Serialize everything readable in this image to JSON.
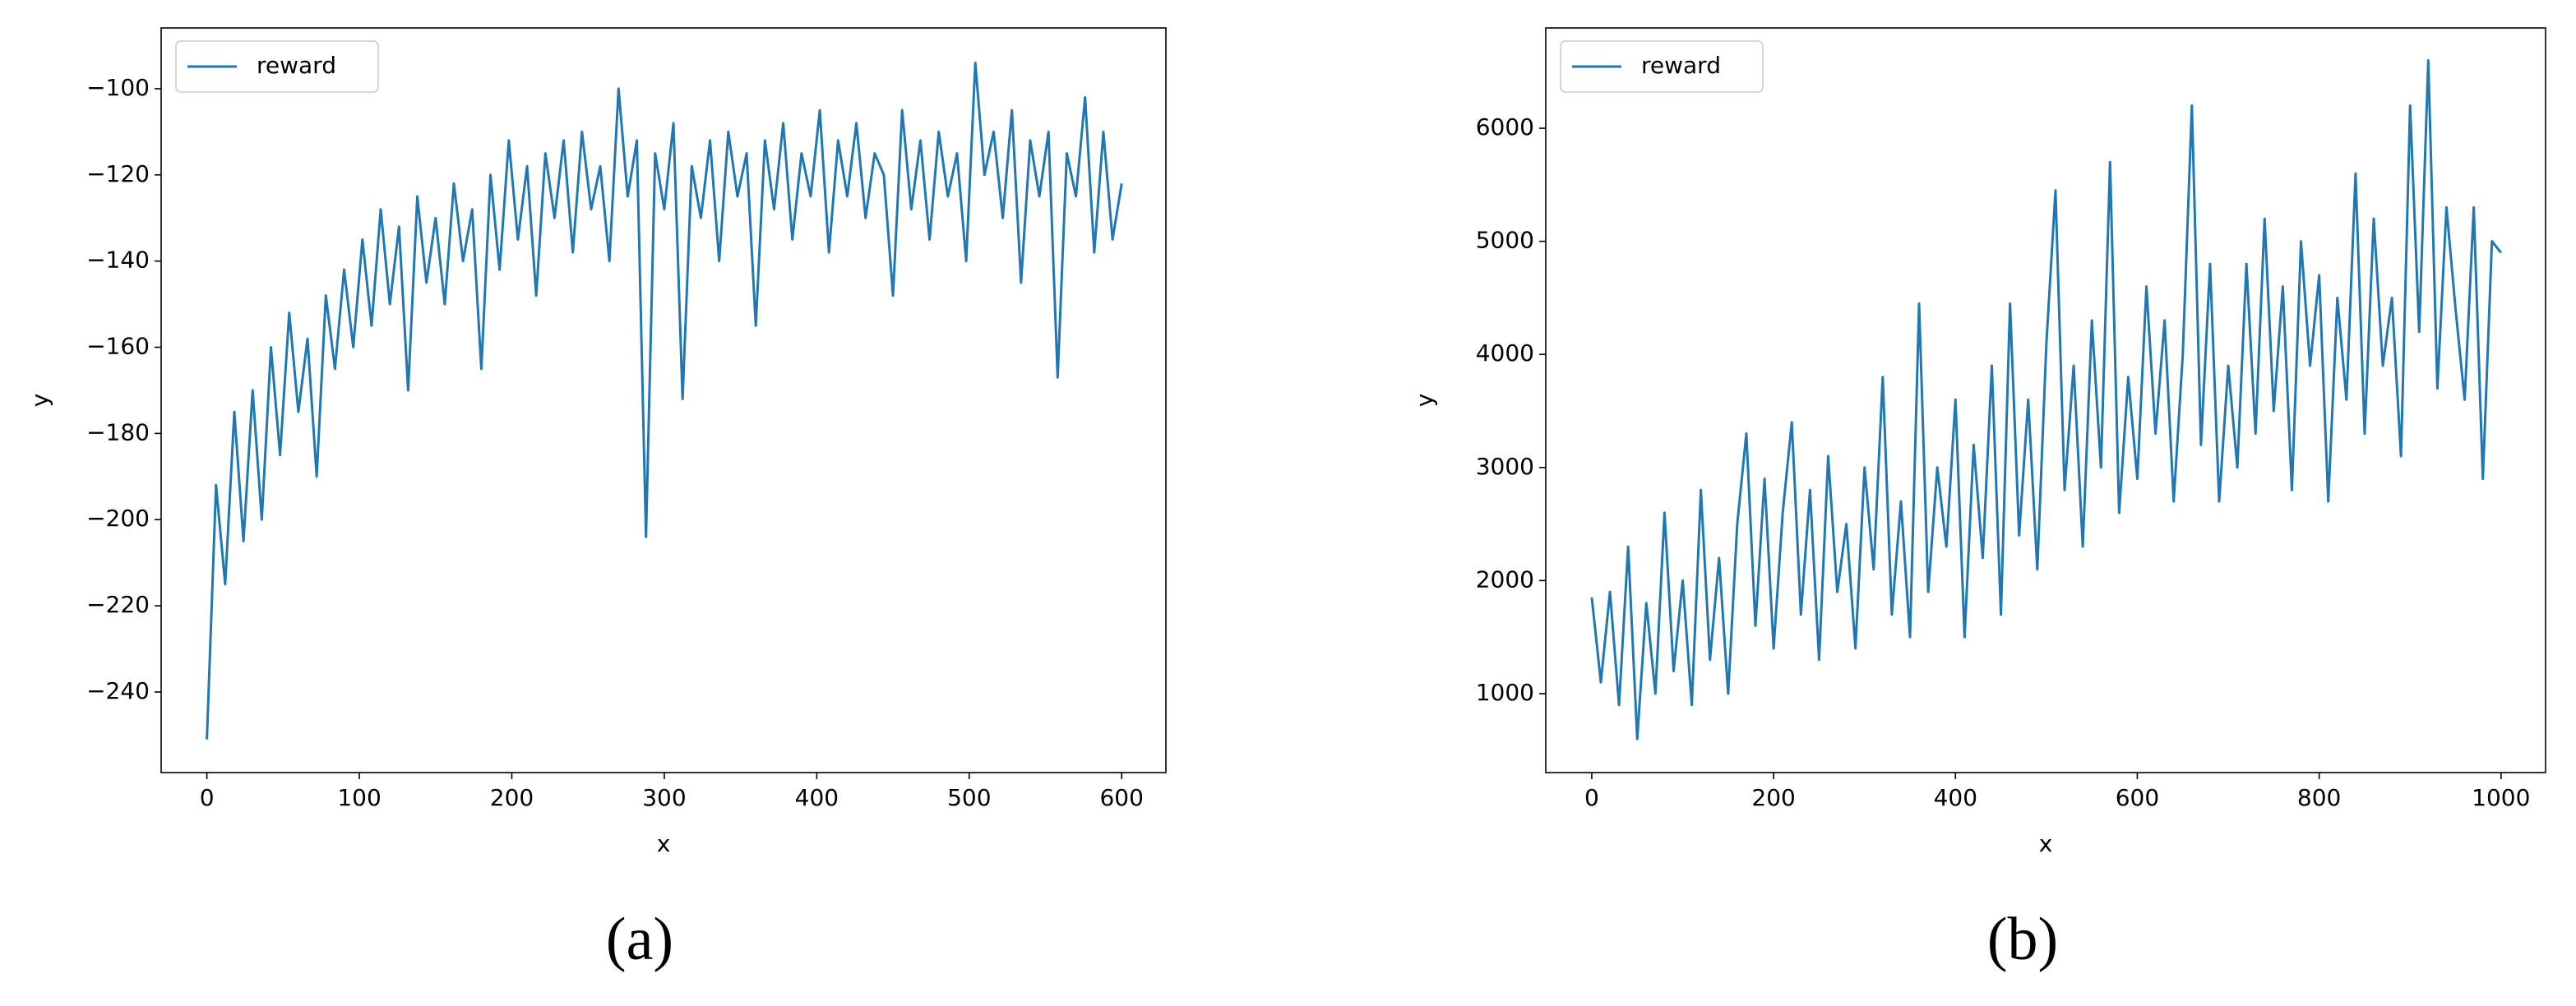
{
  "chart_data": [
    {
      "type": "line",
      "label": "(a)",
      "xlabel": "x",
      "ylabel": "y",
      "legend": "upper left",
      "grid": false,
      "xlim": [
        -30,
        629
      ],
      "ylim": [
        -258.7,
        -85.9
      ],
      "xticks": [
        0,
        100,
        200,
        300,
        400,
        500,
        600
      ],
      "yticks": [
        {
          "value": -240,
          "label": "−240"
        },
        {
          "value": -220,
          "label": "−220"
        },
        {
          "value": -200,
          "label": "−200"
        },
        {
          "value": -180,
          "label": "−180"
        },
        {
          "value": -160,
          "label": "−160"
        },
        {
          "value": -140,
          "label": "−140"
        },
        {
          "value": -120,
          "label": "−120"
        },
        {
          "value": -100,
          "label": "−100"
        }
      ],
      "x": [
        0,
        6,
        12,
        18,
        24,
        30,
        36,
        42,
        48,
        54,
        60,
        66,
        72,
        78,
        84,
        90,
        96,
        102,
        108,
        114,
        120,
        126,
        132,
        138,
        144,
        150,
        156,
        162,
        168,
        174,
        180,
        186,
        192,
        198,
        204,
        210,
        216,
        222,
        228,
        234,
        240,
        246,
        252,
        258,
        264,
        270,
        276,
        282,
        288,
        294,
        300,
        306,
        312,
        318,
        324,
        330,
        336,
        342,
        348,
        354,
        360,
        366,
        372,
        378,
        384,
        390,
        396,
        402,
        408,
        414,
        420,
        426,
        432,
        438,
        444,
        450,
        456,
        462,
        468,
        474,
        480,
        486,
        492,
        498,
        504,
        510,
        516,
        522,
        528,
        534,
        540,
        546,
        552,
        558,
        564,
        570,
        576,
        582,
        588,
        594,
        600
      ],
      "series": [
        {
          "name": "reward",
          "color": "#1f77b4",
          "values": [
            -251,
            -192,
            -215,
            -175,
            -205,
            -170,
            -200,
            -160,
            -185,
            -152,
            -175,
            -158,
            -190,
            -148,
            -165,
            -142,
            -160,
            -135,
            -155,
            -128,
            -150,
            -132,
            -170,
            -125,
            -145,
            -130,
            -150,
            -122,
            -140,
            -128,
            -165,
            -120,
            -142,
            -112,
            -135,
            -118,
            -148,
            -115,
            -130,
            -112,
            -138,
            -110,
            -128,
            -118,
            -140,
            -100,
            -125,
            -112,
            -204,
            -115,
            -128,
            -108,
            -172,
            -118,
            -130,
            -112,
            -140,
            -110,
            -125,
            -115,
            -155,
            -112,
            -128,
            -108,
            -135,
            -115,
            -125,
            -105,
            -138,
            -112,
            -125,
            -108,
            -130,
            -115,
            -120,
            -148,
            -105,
            -128,
            -112,
            -135,
            -110,
            -125,
            -115,
            -140,
            -94,
            -120,
            -110,
            -130,
            -105,
            -145,
            -112,
            -125,
            -110,
            -167,
            -115,
            -125,
            -102,
            -138,
            -110,
            -135,
            -122
          ]
        }
      ]
    },
    {
      "type": "line",
      "label": "(b)",
      "xlabel": "x",
      "ylabel": "y",
      "legend": "upper left",
      "grid": false,
      "xlim": [
        -50.6,
        1049
      ],
      "ylim": [
        302,
        6887
      ],
      "xticks": [
        0,
        200,
        400,
        600,
        800,
        1000
      ],
      "yticks": [
        1000,
        2000,
        3000,
        4000,
        5000,
        6000
      ],
      "x": [
        0,
        10,
        20,
        30,
        40,
        50,
        60,
        70,
        80,
        90,
        100,
        110,
        120,
        130,
        140,
        150,
        160,
        170,
        180,
        190,
        200,
        210,
        220,
        230,
        240,
        250,
        260,
        270,
        280,
        290,
        300,
        310,
        320,
        330,
        340,
        350,
        360,
        370,
        380,
        390,
        400,
        410,
        420,
        430,
        440,
        450,
        460,
        470,
        480,
        490,
        500,
        510,
        520,
        530,
        540,
        550,
        560,
        570,
        580,
        590,
        600,
        610,
        620,
        630,
        640,
        650,
        660,
        670,
        680,
        690,
        700,
        710,
        720,
        730,
        740,
        750,
        760,
        770,
        780,
        790,
        800,
        810,
        820,
        830,
        840,
        850,
        860,
        870,
        880,
        890,
        900,
        910,
        920,
        930,
        940,
        950,
        960,
        970,
        980,
        990,
        1000
      ],
      "series": [
        {
          "name": "reward",
          "color": "#1f77b4",
          "values": [
            1850,
            1100,
            1900,
            900,
            2300,
            600,
            1800,
            1000,
            2600,
            1200,
            2000,
            900,
            2800,
            1300,
            2200,
            1000,
            2500,
            3300,
            1600,
            2900,
            1400,
            2600,
            3400,
            1700,
            2800,
            1300,
            3100,
            1900,
            2500,
            1400,
            3000,
            2100,
            3800,
            1700,
            2700,
            1500,
            4450,
            1900,
            3000,
            2300,
            3600,
            1500,
            3200,
            2200,
            3900,
            1700,
            4450,
            2400,
            3600,
            2100,
            4100,
            5450,
            2800,
            3900,
            2300,
            4300,
            3000,
            5700,
            2600,
            3800,
            2900,
            4600,
            3300,
            4300,
            2700,
            4000,
            6200,
            3200,
            4800,
            2700,
            3900,
            3000,
            4800,
            3300,
            5200,
            3500,
            4600,
            2800,
            5000,
            3900,
            4700,
            2700,
            4500,
            3600,
            5600,
            3300,
            5200,
            3900,
            4500,
            3100,
            6200,
            4200,
            6600,
            3700,
            5300,
            4400,
            3600,
            5300,
            2900,
            5000,
            4900
          ]
        }
      ]
    }
  ]
}
